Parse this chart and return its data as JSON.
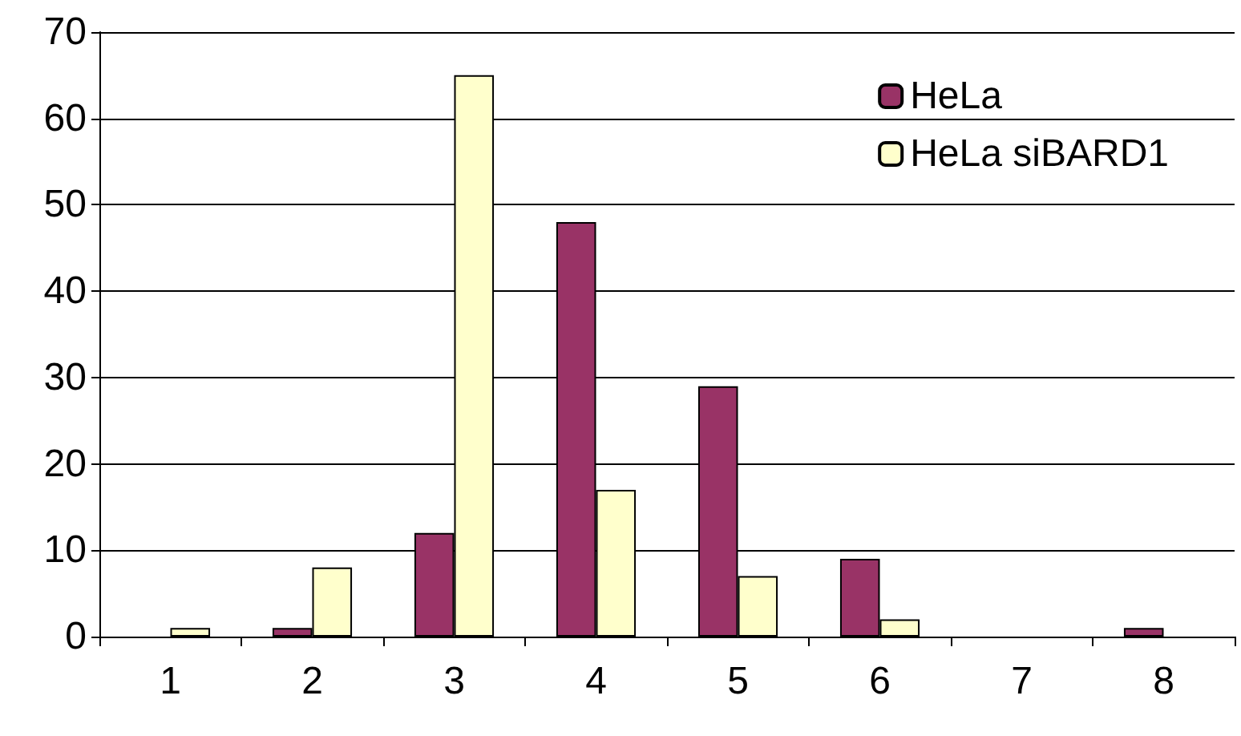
{
  "chart_data": {
    "type": "bar",
    "categories": [
      "1",
      "2",
      "3",
      "4",
      "5",
      "6",
      "7",
      "8"
    ],
    "series": [
      {
        "name": "HeLa",
        "color": "#993366",
        "values": [
          0,
          1,
          12,
          48,
          29,
          9,
          0,
          1
        ]
      },
      {
        "name": "HeLa siBARD1",
        "color": "#ffffcc",
        "values": [
          1,
          8,
          65,
          17,
          7,
          2,
          0,
          0
        ]
      }
    ],
    "ylim": [
      0,
      70
    ],
    "yticks": [
      0,
      10,
      20,
      30,
      40,
      50,
      60,
      70
    ],
    "grid": "y",
    "legend": "top right"
  }
}
